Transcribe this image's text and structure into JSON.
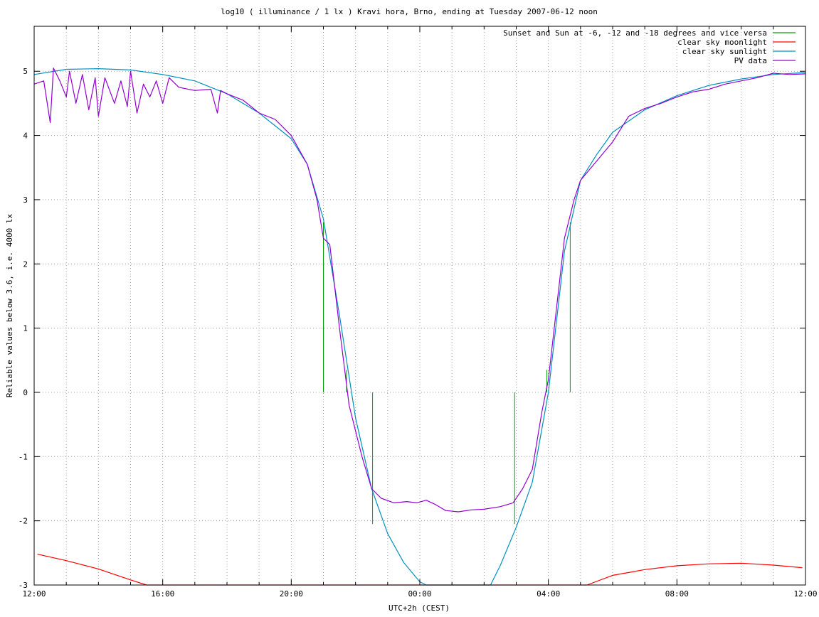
{
  "chart_data": {
    "type": "line",
    "title": "log10 ( illuminance / 1 lx ) Kravi hora, Brno, ending at Tuesday 2007-06-12 noon",
    "xlabel": "UTC+2h (CEST)",
    "ylabel": "Reliable values below 3.6, i.e. 4000 lx",
    "x_unit": "hours since 2007-06-11 12:00 (UTC+2h)",
    "xlim": [
      0,
      24
    ],
    "ylim": [
      -3,
      5.7
    ],
    "grid": true,
    "legend_position": "top-right",
    "x_ticks": [
      {
        "v": 0,
        "label": "12:00"
      },
      {
        "v": 4,
        "label": "16:00"
      },
      {
        "v": 8,
        "label": "20:00"
      },
      {
        "v": 12,
        "label": "00:00"
      },
      {
        "v": 16,
        "label": "04:00"
      },
      {
        "v": 20,
        "label": "08:00"
      },
      {
        "v": 24,
        "label": "12:00"
      }
    ],
    "y_ticks": [
      {
        "v": -3,
        "label": "-3"
      },
      {
        "v": -2,
        "label": "-2"
      },
      {
        "v": -1,
        "label": "-1"
      },
      {
        "v": 0,
        "label": "0"
      },
      {
        "v": 1,
        "label": "1"
      },
      {
        "v": 2,
        "label": "2"
      },
      {
        "v": 3,
        "label": "3"
      },
      {
        "v": 4,
        "label": "4"
      },
      {
        "v": 5,
        "label": "5"
      }
    ],
    "series": [
      {
        "name": "Sunset and Sun at -6, -12 and -18 degrees and vice versa",
        "color": "#00a000",
        "style": "impulses",
        "points": [
          [
            9.0,
            2.65
          ],
          [
            9.72,
            0.35
          ],
          [
            10.53,
            -2.05
          ],
          [
            14.95,
            -2.05
          ],
          [
            15.95,
            0.35
          ],
          [
            16.68,
            2.65
          ]
        ]
      },
      {
        "name": "clear sky moonlight",
        "color": "#ff0000",
        "style": "line",
        "points": [
          [
            0.1,
            -2.52
          ],
          [
            1.0,
            -2.62
          ],
          [
            2.0,
            -2.75
          ],
          [
            3.0,
            -2.92
          ],
          [
            3.5,
            -3.0
          ],
          [
            17.2,
            -3.0
          ],
          [
            18.0,
            -2.85
          ],
          [
            19.0,
            -2.76
          ],
          [
            20.0,
            -2.7
          ],
          [
            21.0,
            -2.67
          ],
          [
            22.0,
            -2.66
          ],
          [
            23.0,
            -2.69
          ],
          [
            23.9,
            -2.73
          ]
        ]
      },
      {
        "name": "clear sky sunlight",
        "color": "#0090c0",
        "style": "line",
        "points": [
          [
            0.0,
            4.95
          ],
          [
            1.0,
            5.03
          ],
          [
            2.0,
            5.04
          ],
          [
            3.0,
            5.02
          ],
          [
            4.0,
            4.95
          ],
          [
            5.0,
            4.85
          ],
          [
            6.0,
            4.65
          ],
          [
            7.0,
            4.35
          ],
          [
            8.0,
            3.95
          ],
          [
            8.5,
            3.55
          ],
          [
            9.0,
            2.7
          ],
          [
            9.5,
            1.2
          ],
          [
            10.0,
            -0.4
          ],
          [
            10.5,
            -1.5
          ],
          [
            11.0,
            -2.2
          ],
          [
            11.5,
            -2.65
          ],
          [
            12.0,
            -2.95
          ],
          [
            12.2,
            -3.0
          ],
          [
            14.2,
            -3.0
          ],
          [
            14.5,
            -2.7
          ],
          [
            15.0,
            -2.1
          ],
          [
            15.5,
            -1.4
          ],
          [
            16.0,
            0.0
          ],
          [
            16.5,
            2.2
          ],
          [
            17.0,
            3.3
          ],
          [
            17.5,
            3.7
          ],
          [
            18.0,
            4.05
          ],
          [
            19.0,
            4.4
          ],
          [
            20.0,
            4.62
          ],
          [
            21.0,
            4.78
          ],
          [
            22.0,
            4.88
          ],
          [
            23.0,
            4.95
          ],
          [
            24.0,
            4.98
          ]
        ]
      },
      {
        "name": "PV data",
        "color": "#9400d3",
        "style": "line",
        "points": [
          [
            0.0,
            4.8
          ],
          [
            0.3,
            4.85
          ],
          [
            0.5,
            4.2
          ],
          [
            0.6,
            5.05
          ],
          [
            0.8,
            4.85
          ],
          [
            1.0,
            4.6
          ],
          [
            1.1,
            5.0
          ],
          [
            1.3,
            4.5
          ],
          [
            1.5,
            4.95
          ],
          [
            1.7,
            4.4
          ],
          [
            1.9,
            4.9
          ],
          [
            2.0,
            4.3
          ],
          [
            2.2,
            4.9
          ],
          [
            2.5,
            4.5
          ],
          [
            2.7,
            4.85
          ],
          [
            2.9,
            4.45
          ],
          [
            3.0,
            5.0
          ],
          [
            3.2,
            4.35
          ],
          [
            3.4,
            4.8
          ],
          [
            3.6,
            4.6
          ],
          [
            3.8,
            4.85
          ],
          [
            4.0,
            4.5
          ],
          [
            4.2,
            4.9
          ],
          [
            4.5,
            4.75
          ],
          [
            5.0,
            4.7
          ],
          [
            5.5,
            4.72
          ],
          [
            5.7,
            4.35
          ],
          [
            5.8,
            4.7
          ],
          [
            6.0,
            4.65
          ],
          [
            6.5,
            4.55
          ],
          [
            7.0,
            4.35
          ],
          [
            7.5,
            4.25
          ],
          [
            8.0,
            4.0
          ],
          [
            8.5,
            3.55
          ],
          [
            8.8,
            3.0
          ],
          [
            9.0,
            2.4
          ],
          [
            9.2,
            2.3
          ],
          [
            9.5,
            1.0
          ],
          [
            9.8,
            -0.2
          ],
          [
            10.2,
            -1.0
          ],
          [
            10.5,
            -1.5
          ],
          [
            10.8,
            -1.65
          ],
          [
            11.2,
            -1.72
          ],
          [
            11.6,
            -1.7
          ],
          [
            11.9,
            -1.72
          ],
          [
            12.2,
            -1.68
          ],
          [
            12.5,
            -1.75
          ],
          [
            12.8,
            -1.84
          ],
          [
            13.2,
            -1.86
          ],
          [
            13.6,
            -1.83
          ],
          [
            14.0,
            -1.82
          ],
          [
            14.5,
            -1.78
          ],
          [
            14.9,
            -1.72
          ],
          [
            15.2,
            -1.5
          ],
          [
            15.5,
            -1.2
          ],
          [
            15.8,
            -0.3
          ],
          [
            16.0,
            0.2
          ],
          [
            16.5,
            2.4
          ],
          [
            16.8,
            3.0
          ],
          [
            17.0,
            3.3
          ],
          [
            17.5,
            3.6
          ],
          [
            18.0,
            3.9
          ],
          [
            18.5,
            4.3
          ],
          [
            19.0,
            4.42
          ],
          [
            19.5,
            4.5
          ],
          [
            20.0,
            4.6
          ],
          [
            20.5,
            4.68
          ],
          [
            21.0,
            4.72
          ],
          [
            21.5,
            4.8
          ],
          [
            22.0,
            4.85
          ],
          [
            22.5,
            4.9
          ],
          [
            23.0,
            4.97
          ],
          [
            23.5,
            4.95
          ],
          [
            24.0,
            4.96
          ]
        ]
      }
    ]
  }
}
